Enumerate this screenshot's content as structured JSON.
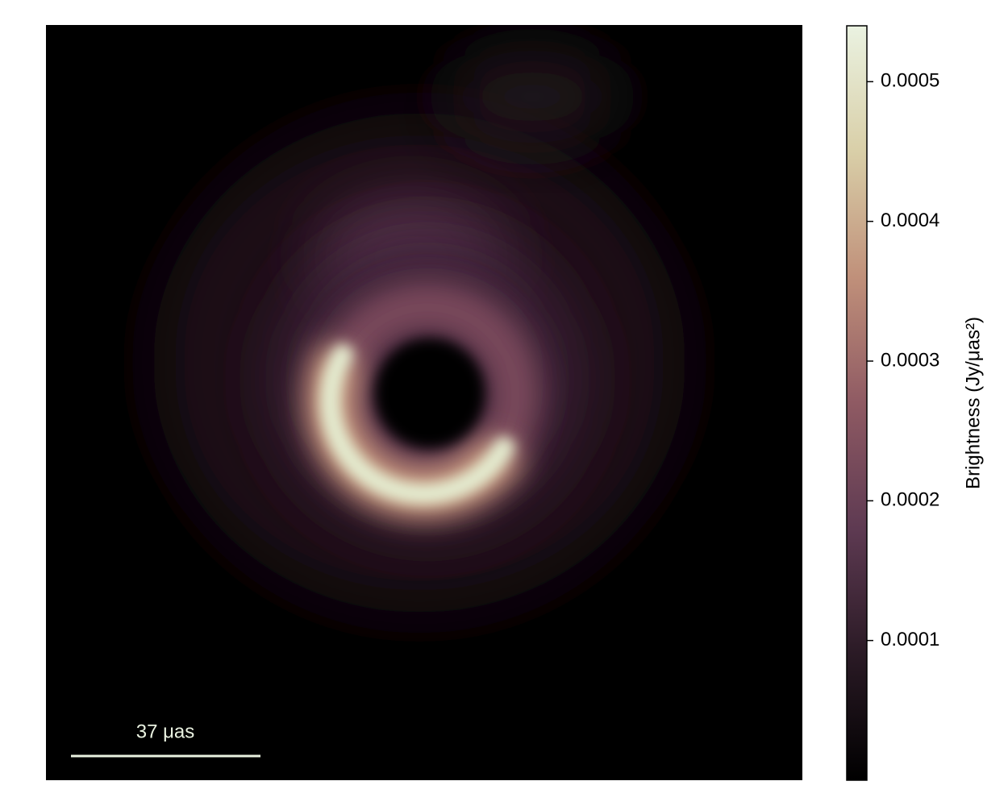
{
  "chart_data": {
    "type": "image",
    "scale_bar_label": "37 μas",
    "colorbar_label": "Brightness (Jy/μas²)",
    "clim": [
      0,
      0.00054
    ],
    "cticks": [
      0.0001,
      0.0002,
      0.0003,
      0.0004,
      0.0005
    ],
    "colormap": [
      "#000000",
      "#2a1a25",
      "#5e3a52",
      "#8f5a63",
      "#c0907a",
      "#d9cfa8",
      "#eaf2e1"
    ]
  }
}
